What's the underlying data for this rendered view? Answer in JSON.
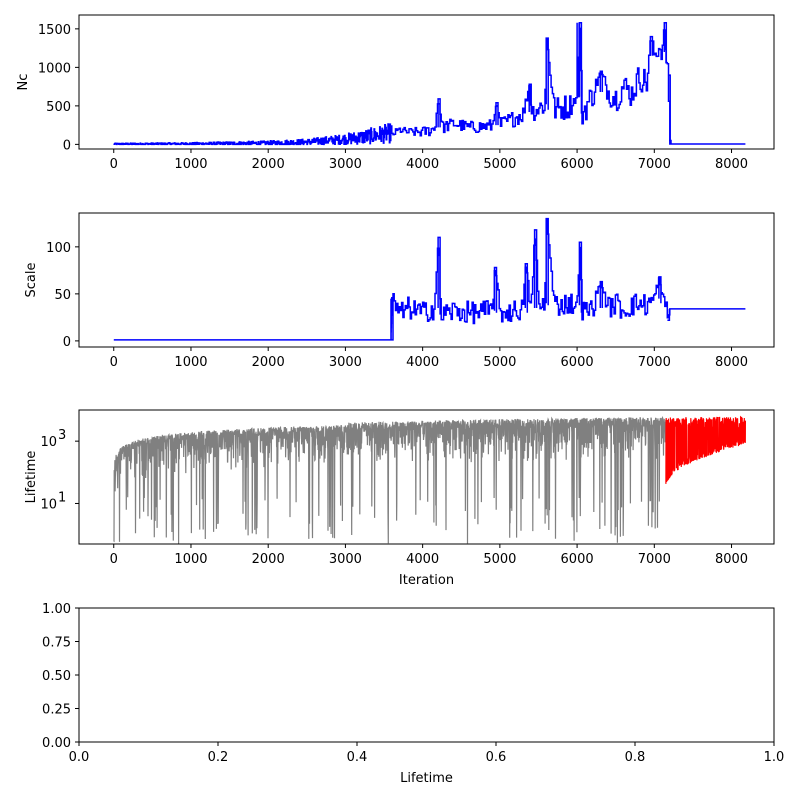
{
  "chart_data": [
    {
      "type": "line",
      "ylabel": "Nc",
      "xlabel": "",
      "xlim": [
        -450,
        8550
      ],
      "ylim": [
        -60,
        1680
      ],
      "x_ticks": [
        0,
        1000,
        2000,
        3000,
        4000,
        5000,
        6000,
        7000,
        8000
      ],
      "y_ticks": [
        0,
        500,
        1000,
        1500
      ],
      "series": [
        {
          "color": "#0000ff",
          "segments": [
            {
              "x": [
                0,
                1000,
                2000,
                2500,
                2900,
                3200,
                3400,
                3600
              ],
              "y": [
                5,
                8,
                15,
                30,
                60,
                90,
                120,
                150
              ],
              "noise": [
                10,
                15,
                30,
                40,
                60,
                90,
                110,
                130
              ],
              "step": 6
            },
            {
              "x": [
                3600,
                3700,
                3800,
                4000,
                4150,
                4200,
                4250,
                4400,
                4600,
                4900,
                4950,
                5000,
                5200,
                5300,
                5380,
                5400,
                5500,
                5580,
                5600,
                5700,
                5900,
                6000,
                6030,
                6060,
                6200,
                6300,
                6400,
                6500,
                6600,
                6700,
                6800,
                6900,
                6950,
                7000,
                7050,
                7100,
                7130,
                7140,
                7160,
                7180,
                7190,
                7200,
                8180
              ],
              "y": [
                130,
                190,
                160,
                160,
                200,
                590,
                220,
                270,
                220,
                240,
                540,
                250,
                350,
                400,
                780,
                420,
                470,
                520,
                1380,
                450,
                500,
                620,
                1580,
                400,
                650,
                950,
                680,
                600,
                760,
                650,
                880,
                800,
                1400,
                1150,
                1270,
                1200,
                1580,
                1050,
                1050,
                900,
                50,
                5,
                5
              ],
              "noise": [
                40,
                50,
                50,
                70,
                80,
                0,
                80,
                80,
                80,
                90,
                0,
                100,
                110,
                120,
                0,
                130,
                140,
                150,
                0,
                160,
                170,
                0,
                0,
                180,
                180,
                0,
                170,
                180,
                170,
                180,
                180,
                180,
                0,
                150,
                140,
                120,
                0,
                100,
                100,
                0,
                0,
                0,
                0
              ],
              "step": 16
            }
          ]
        }
      ]
    },
    {
      "type": "line",
      "ylabel": "Scale",
      "xlabel": "",
      "xlim": [
        -450,
        8550
      ],
      "ylim": [
        -6.5,
        136
      ],
      "x_ticks": [
        0,
        1000,
        2000,
        3000,
        4000,
        5000,
        6000,
        7000,
        8000
      ],
      "y_ticks": [
        0,
        50,
        100
      ],
      "series": [
        {
          "color": "#0000ff",
          "segments": [
            {
              "x": [
                0,
                3580,
                3590,
                3600
              ],
              "y": [
                1,
                1,
                1,
                45
              ],
              "noise": [
                0,
                0,
                0,
                0
              ],
              "step": 1
            },
            {
              "x": [
                3600,
                3700,
                3800,
                4000,
                4150,
                4200,
                4230,
                4400,
                4600,
                4900,
                4930,
                5000,
                5200,
                5300,
                5330,
                5400,
                5450,
                5500,
                5580,
                5600,
                5700,
                5900,
                6000,
                6030,
                6060,
                6200,
                6300,
                6400,
                6500,
                6600,
                6700,
                6800,
                6900,
                7000,
                7060,
                7100,
                7150,
                7170,
                7200,
                8180
              ],
              "y": [
                45,
                28,
                35,
                30,
                35,
                110,
                28,
                32,
                30,
                32,
                78,
                30,
                32,
                35,
                82,
                30,
                118,
                35,
                40,
                130,
                38,
                40,
                38,
                105,
                30,
                35,
                63,
                35,
                40,
                32,
                38,
                40,
                38,
                45,
                68,
                40,
                42,
                22,
                34,
                34
              ],
              "noise": [
                10,
                12,
                12,
                12,
                12,
                0,
                12,
                12,
                12,
                12,
                0,
                12,
                12,
                12,
                0,
                12,
                0,
                12,
                12,
                0,
                12,
                12,
                12,
                0,
                12,
                12,
                0,
                12,
                12,
                12,
                12,
                12,
                12,
                12,
                0,
                12,
                12,
                0,
                0,
                0
              ],
              "step": 16
            }
          ]
        }
      ]
    },
    {
      "type": "line",
      "ylabel": "Lifetime",
      "xlabel": "Iteration",
      "xlim": [
        -450,
        8550
      ],
      "ylim": [
        0.5,
        10000
      ],
      "yscale": "log",
      "x_ticks": [
        0,
        1000,
        2000,
        3000,
        4000,
        5000,
        6000,
        7000,
        8000
      ],
      "y_ticks": [
        10,
        1000
      ],
      "y_tick_labels": [
        "10^1",
        "10^3"
      ],
      "series": [
        {
          "color": "#808080",
          "x_range": [
            0,
            7150
          ],
          "envelope": "sqrt-growth",
          "upper_max": 5000
        },
        {
          "color": "#ff0000",
          "x_range": [
            7150,
            8180
          ],
          "envelope": "band",
          "lower": 40,
          "upper": 6000
        }
      ]
    },
    {
      "type": "empty",
      "ylabel": "",
      "xlabel": "Lifetime",
      "xlim": [
        0,
        1
      ],
      "ylim": [
        0,
        1
      ],
      "x_ticks": [
        0.0,
        0.2,
        0.4,
        0.6,
        0.8,
        1.0
      ],
      "x_tick_labels": [
        "0.0",
        "0.2",
        "0.4",
        "0.6",
        "0.8",
        "1.0"
      ],
      "y_ticks": [
        0.0,
        0.25,
        0.5,
        0.75,
        1.0
      ],
      "y_tick_labels": [
        "0.00",
        "0.25",
        "0.50",
        "0.75",
        "1.00"
      ]
    }
  ]
}
